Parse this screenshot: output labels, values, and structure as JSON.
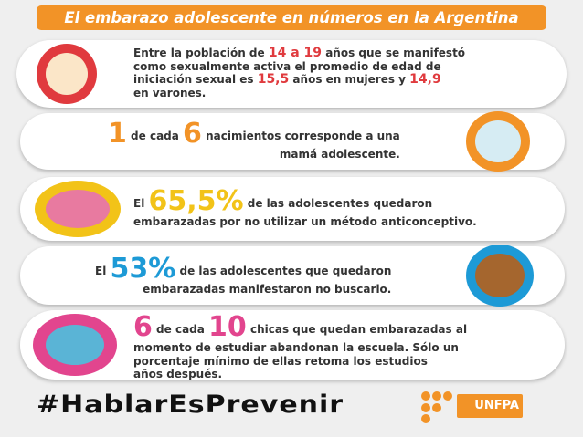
{
  "header": {
    "title": "El embarazo adolescente en números en la Argentina"
  },
  "cards": [
    {
      "lines": [
        [
          "Entre la población de ",
          "14 a 19",
          " años que se manifestó"
        ],
        [
          "como sexualmente activa el promedio de edad de"
        ],
        [
          "iniciación sexual es ",
          "15,5",
          " años en mujeres y ",
          "14,9"
        ],
        [
          "en varones."
        ]
      ]
    },
    {
      "lines": [
        [
          "1",
          " de cada ",
          "6",
          " nacimientos corresponde a una"
        ],
        [
          "mamá adolescente."
        ]
      ]
    },
    {
      "lines": [
        [
          "El ",
          "65,5%",
          " de las adolescentes quedaron"
        ],
        [
          "embarazadas por no utilizar un método anticonceptivo."
        ]
      ]
    },
    {
      "lines": [
        [
          "El ",
          "53%",
          " de las adolescentes que quedaron"
        ],
        [
          "embarazadas manifestaron no buscarlo."
        ]
      ]
    },
    {
      "lines": [
        [
          "6",
          " de cada ",
          "10",
          " chicas que quedan embarazadas al"
        ],
        [
          "momento de estudiar abandonan la escuela. Sólo un"
        ],
        [
          "porcentaje mínimo de ellas retoma los estudios"
        ],
        [
          "años después."
        ]
      ]
    }
  ],
  "footer": {
    "hashtag": "#HablarEsPrevenir",
    "logo": "UNFPA"
  }
}
